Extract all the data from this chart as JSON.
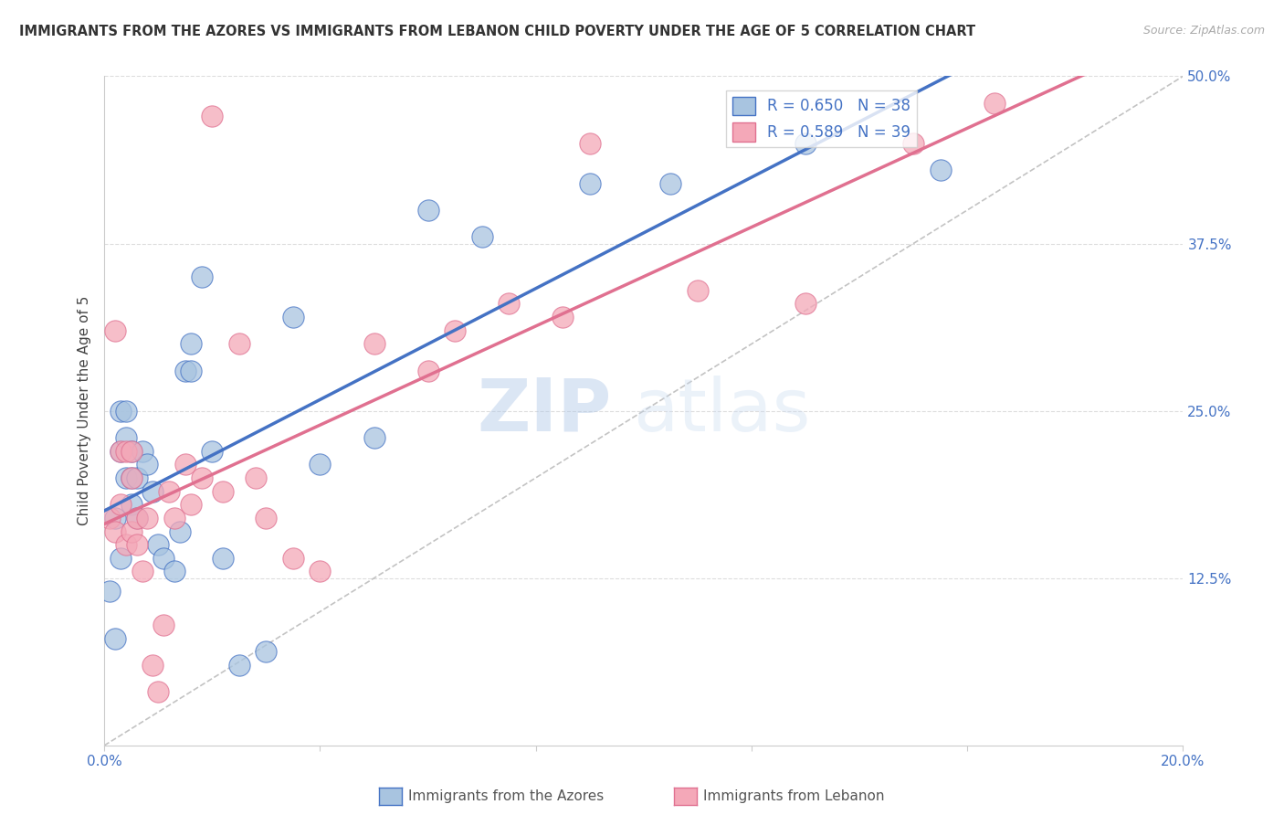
{
  "title": "IMMIGRANTS FROM THE AZORES VS IMMIGRANTS FROM LEBANON CHILD POVERTY UNDER THE AGE OF 5 CORRELATION CHART",
  "source": "Source: ZipAtlas.com",
  "ylabel": "Child Poverty Under the Age of 5",
  "y_ticks": [
    0.0,
    0.125,
    0.25,
    0.375,
    0.5
  ],
  "y_tick_labels": [
    "",
    "12.5%",
    "25.0%",
    "37.5%",
    "50.0%"
  ],
  "x_ticks": [
    0.0,
    0.04,
    0.08,
    0.12,
    0.16,
    0.2
  ],
  "xlim": [
    0.0,
    0.2
  ],
  "ylim": [
    0.0,
    0.5
  ],
  "R_azores": 0.65,
  "N_azores": 38,
  "R_lebanon": 0.589,
  "N_lebanon": 39,
  "legend_label_azores": "Immigrants from the Azores",
  "legend_label_lebanon": "Immigrants from Lebanon",
  "color_azores": "#a8c4e0",
  "color_lebanon": "#f4a8b8",
  "color_line_azores": "#4472c4",
  "color_line_lebanon": "#e07090",
  "color_legend_text": "#4472c4",
  "watermark_zip": "ZIP",
  "watermark_atlas": "atlas",
  "background_color": "#ffffff",
  "grid_color": "#dddddd",
  "azores_x": [
    0.001,
    0.002,
    0.002,
    0.003,
    0.003,
    0.003,
    0.004,
    0.004,
    0.004,
    0.005,
    0.005,
    0.005,
    0.006,
    0.006,
    0.007,
    0.008,
    0.009,
    0.01,
    0.011,
    0.013,
    0.014,
    0.015,
    0.016,
    0.016,
    0.018,
    0.02,
    0.022,
    0.025,
    0.03,
    0.035,
    0.04,
    0.05,
    0.06,
    0.07,
    0.09,
    0.105,
    0.13,
    0.155
  ],
  "azores_y": [
    0.115,
    0.08,
    0.17,
    0.14,
    0.22,
    0.25,
    0.2,
    0.23,
    0.25,
    0.18,
    0.2,
    0.22,
    0.17,
    0.2,
    0.22,
    0.21,
    0.19,
    0.15,
    0.14,
    0.13,
    0.16,
    0.28,
    0.3,
    0.28,
    0.35,
    0.22,
    0.14,
    0.06,
    0.07,
    0.32,
    0.21,
    0.23,
    0.4,
    0.38,
    0.42,
    0.42,
    0.45,
    0.43
  ],
  "lebanon_x": [
    0.001,
    0.002,
    0.002,
    0.003,
    0.003,
    0.004,
    0.004,
    0.005,
    0.005,
    0.005,
    0.006,
    0.006,
    0.007,
    0.008,
    0.009,
    0.01,
    0.011,
    0.012,
    0.013,
    0.015,
    0.016,
    0.018,
    0.02,
    0.022,
    0.025,
    0.028,
    0.03,
    0.035,
    0.04,
    0.05,
    0.06,
    0.065,
    0.075,
    0.085,
    0.09,
    0.11,
    0.13,
    0.15,
    0.165
  ],
  "lebanon_y": [
    0.17,
    0.31,
    0.16,
    0.22,
    0.18,
    0.22,
    0.15,
    0.16,
    0.22,
    0.2,
    0.15,
    0.17,
    0.13,
    0.17,
    0.06,
    0.04,
    0.09,
    0.19,
    0.17,
    0.21,
    0.18,
    0.2,
    0.47,
    0.19,
    0.3,
    0.2,
    0.17,
    0.14,
    0.13,
    0.3,
    0.28,
    0.31,
    0.33,
    0.32,
    0.45,
    0.34,
    0.33,
    0.45,
    0.48
  ]
}
